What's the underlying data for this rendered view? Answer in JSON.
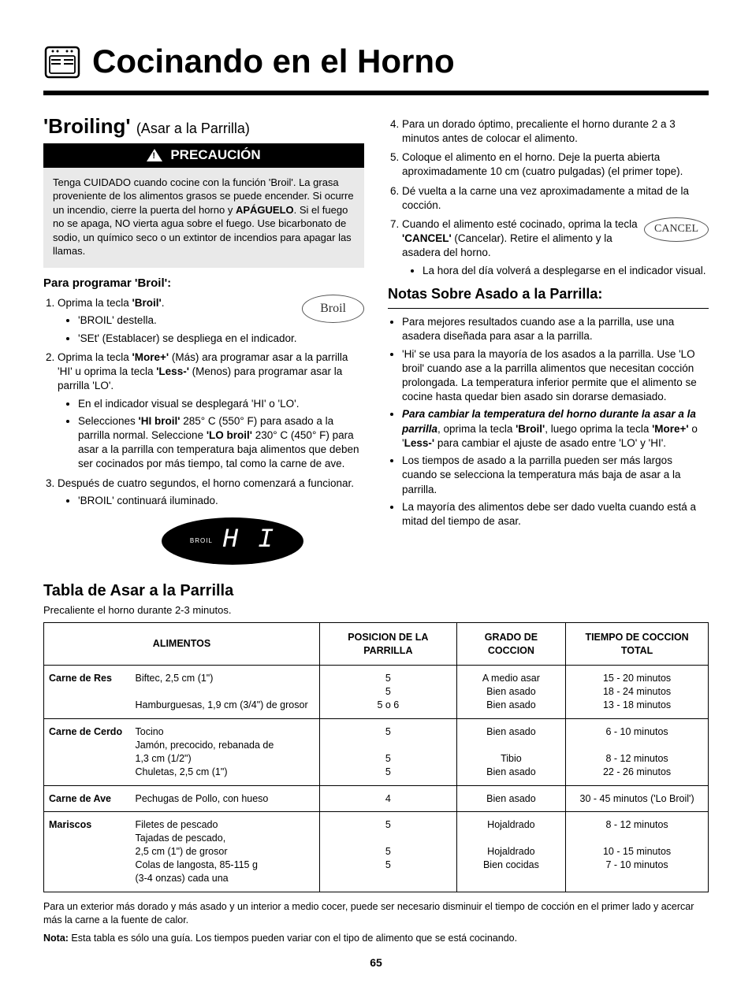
{
  "pageTitle": "Cocinando en el Horno",
  "section": {
    "title": "'Broiling'",
    "sub": "(Asar a la Parrilla)"
  },
  "caution": {
    "label": "PRECAUCIÓN",
    "body_a": "Tenga CUIDADO cuando cocine con la función 'Broil'. La grasa proveniente de los alimentos grasos se puede encender. Si ocurre un incendio, cierre la puerta del horno y ",
    "body_bold": "APÁGUELO",
    "body_b": ". Si el fuego no se apaga, NO vierta agua sobre el fuego. Use bicarbonato de sodio, un químico seco o un extintor de incendios para apagar las llamas."
  },
  "program": {
    "heading": "Para programar 'Broil':",
    "broilBtn": "Broil",
    "cancelBtn": "CANCEL",
    "s1": "Oprima la tecla <b>'Broil'</b>.",
    "s1a": "'BROIL' destella.",
    "s1b": "'SEt' (Establacer) se despliega en el indicador.",
    "s2": "Oprima la tecla <b>'More+'</b> (Más) ara programar asar a la parrilla 'HI' u oprima la tecla <b>'Less-'</b> (Menos) para programar asar la parrilla 'LO'.",
    "s2a": "En el indicador visual se desplegará 'HI' o 'LO'.",
    "s2b": "Selecciones <b>'HI broil'</b> 285° C (550° F) para asado a la parrilla normal. Seleccione <b>'LO broil'</b> 230° C (450° F) para asar a la parrilla con temperatura baja alimentos que deben ser cocinados por más tiempo, tal como la carne de ave.",
    "s3": "Después de cuatro segundos, el horno comenzará a funcionar.",
    "s3a": "'BROIL' continuará iluminado.",
    "display_small": "BROIL",
    "display_big": "H I",
    "s4": "Para un dorado óptimo, precaliente el horno durante 2 a 3 minutos antes de colocar el alimento.",
    "s5": "Coloque el alimento en el horno. Deje la puerta abierta aproximadamente 10 cm (cuatro pulgadas) (el primer tope).",
    "s6": "Dé vuelta a la carne una vez aproximadamente a mitad de la cocción.",
    "s7": "Cuando el alimento esté cocinado, oprima la tecla <b>'CANCEL'</b> (Cancelar). Retire el alimento y la asadera del horno.",
    "s7a": "La hora del día volverá a desplegarse en el indicador visual."
  },
  "notes": {
    "title": "Notas Sobre Asado a la Parrilla:",
    "n1": "Para mejores resultados cuando ase a la parrilla, use una asadera diseñada para asar a la parrilla.",
    "n2": "'Hi' se usa para la mayoría de los asados a la parrilla. Use 'LO broil' cuando ase a la parrilla alimentos que necesitan cocción prolongada. La temperatura inferior permite que el alimento se cocine hasta quedar bien asado sin dorarse demasiado.",
    "n3": "<b><i>Para cambiar la temperatura del horno durante la asar a la parrilla</i></b>, oprima la tecla <b>'Broil'</b>, luego oprima la tecla <b>'More+'</b> o '<b>Less-'</b> para cambiar el ajuste de asado entre 'LO' y 'HI'.",
    "n4": "Los tiempos de asado a la parrilla pueden ser más largos cuando se selecciona la temperatura más baja de asar a la parrilla.",
    "n5": "La mayoría des alimentos debe ser dado vuelta cuando está a mitad del tiempo de asar."
  },
  "table": {
    "title": "Tabla de Asar a la Parrilla",
    "sub": "Precaliente el horno durante 2-3 minutos.",
    "headers": [
      "ALIMENTOS",
      "POSICION DE LA PARRILLA",
      "GRADO DE COCCION",
      "TIEMPO DE COCCION TOTAL"
    ],
    "rows": [
      {
        "cat": "Carne de Res",
        "desc": "Biftec, 2,5 cm (1\")\n\nHamburguesas, 1,9 cm (3/4\") de grosor",
        "pos": "5\n5\n5 o 6",
        "done": "A medio asar\nBien asado\nBien asado",
        "time": "15 - 20 minutos\n18 - 24 minutos\n13 - 18 minutos"
      },
      {
        "cat": "Carne de Cerdo",
        "desc": "Tocino\nJamón, precocido, rebanada de\n1,3 cm (1/2\")\nChuletas, 2,5 cm (1\")",
        "pos": "5\n\n5\n5",
        "done": "Bien asado\n\nTibio\nBien asado",
        "time": "6 - 10 minutos\n\n8 - 12 minutos\n22 - 26 minutos"
      },
      {
        "cat": "Carne de Ave",
        "desc": "Pechugas de Pollo, con hueso",
        "pos": "4",
        "done": "Bien asado",
        "time": "30 - 45 minutos ('Lo Broil')"
      },
      {
        "cat": "Mariscos",
        "desc": "Filetes de pescado\nTajadas de pescado,\n2,5 cm (1\") de grosor\nColas de langosta, 85-115 g\n(3-4 onzas) cada una",
        "pos": "5\n\n5\n5",
        "done": "Hojaldrado\n\nHojaldrado\nBien cocidas",
        "time": "8 - 12 minutos\n\n10 - 15 minutos\n7 - 10 minutos"
      }
    ]
  },
  "footer": {
    "f1": "Para un exterior más dorado y más asado y un interior a medio cocer, puede ser necesario disminuir el tiempo de cocción en el primer lado y acercar más la carne a la fuente de calor.",
    "f2_bold": "Nota:",
    "f2": " Esta tabla es sólo una guía. Los tiempos pueden variar con el tipo de alimento que se está cocinando."
  },
  "pageNumber": "65"
}
